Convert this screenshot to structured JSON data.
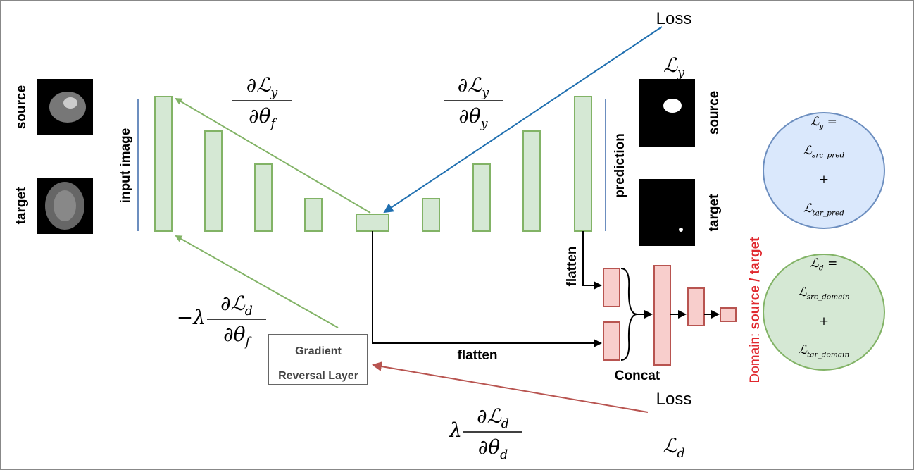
{
  "left_images": {
    "source": "source",
    "target": "target",
    "caption": "input image"
  },
  "right_images": {
    "source": "source",
    "target": "target",
    "caption": "prediction"
  },
  "loss_top": {
    "title": "Loss",
    "symbol": {
      "main": "ℒ",
      "sub": "y"
    }
  },
  "loss_bottom": {
    "title": "Loss",
    "symbol": {
      "main": "ℒ",
      "sub": "d"
    }
  },
  "gradients": [
    {
      "prefix": "",
      "num": {
        "main": "∂ℒ",
        "sub": "y"
      },
      "den": {
        "main": "∂θ",
        "sub": "f"
      }
    },
    {
      "prefix": "",
      "num": {
        "main": "∂ℒ",
        "sub": "y"
      },
      "den": {
        "main": "∂θ",
        "sub": "y"
      }
    },
    {
      "prefix": "−λ",
      "num": {
        "main": "∂ℒ",
        "sub": "d"
      },
      "den": {
        "main": "∂θ",
        "sub": "f"
      }
    },
    {
      "prefix": "λ",
      "num": {
        "main": "∂ℒ",
        "sub": "d"
      },
      "den": {
        "main": "∂θ",
        "sub": "d"
      }
    }
  ],
  "grl": {
    "line1": "Gradient",
    "line2": "Reversal Layer"
  },
  "flatten_vertical": "flatten",
  "flatten_horizontal": "flatten",
  "concat": "Concat",
  "domain": {
    "prefix": "Domain: ",
    "value": "source / target"
  },
  "circles": [
    {
      "lines": [
        {
          "main": "ℒ",
          "sub": "y",
          "tail": " ="
        },
        {
          "main": "ℒ",
          "sub": "src_pred"
        },
        {
          "main": "+"
        },
        {
          "main": "ℒ",
          "sub": "tar_pred"
        }
      ]
    },
    {
      "lines": [
        {
          "main": "ℒ",
          "sub": "d",
          "tail": " ="
        },
        {
          "main": "ℒ",
          "sub": "src_domain"
        },
        {
          "main": "+"
        },
        {
          "main": "ℒ",
          "sub": "tar_domain"
        }
      ]
    }
  ]
}
